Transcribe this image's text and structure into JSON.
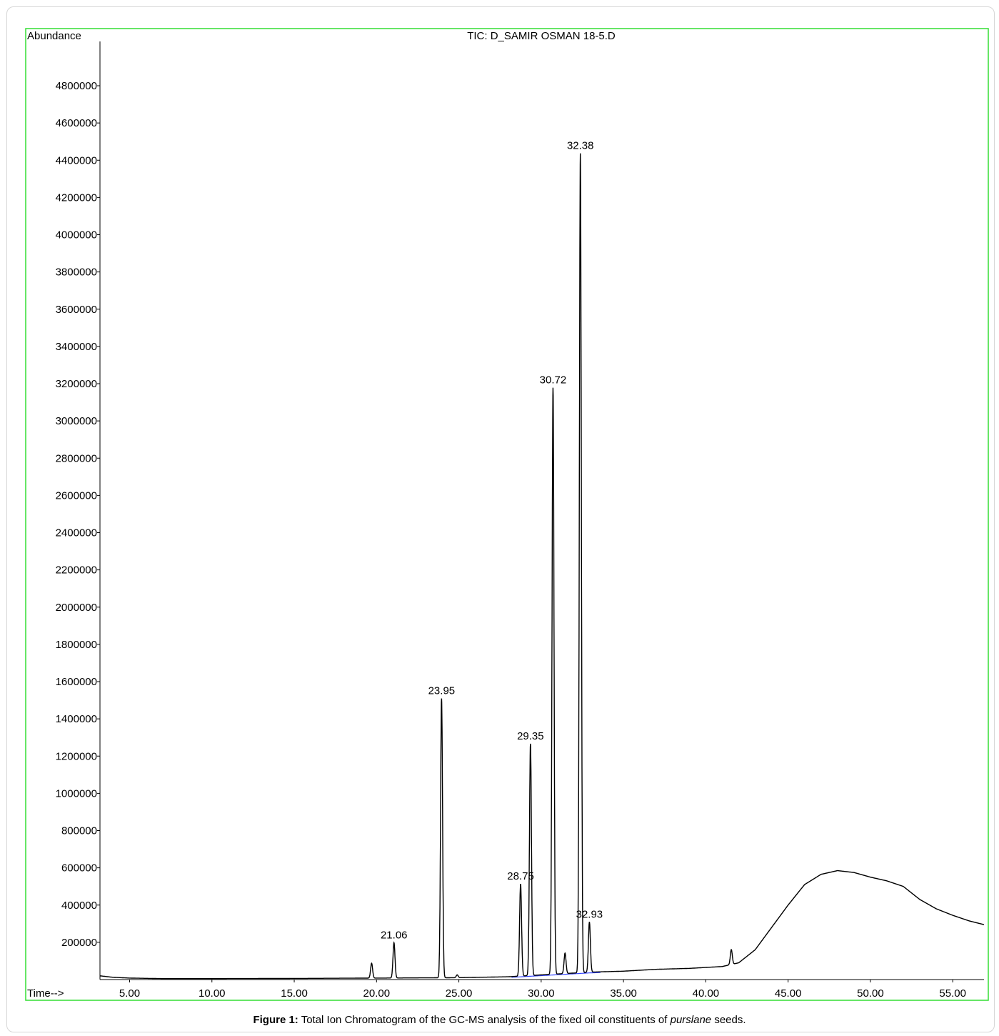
{
  "chart_data": {
    "type": "line",
    "title": "TIC: D_SAMIR OSMAN 18-5.D",
    "ylabel": "Abundance",
    "xlabel": "Time-->",
    "xlim": [
      3.2,
      56.9
    ],
    "ylim": [
      0,
      5000000
    ],
    "grid": false,
    "frame_color": "#33dd33",
    "line_color": "#000000",
    "baseline_color": "#3344ff",
    "yticks": [
      200000,
      400000,
      600000,
      800000,
      1000000,
      1200000,
      1400000,
      1600000,
      1800000,
      2000000,
      2200000,
      2400000,
      2600000,
      2800000,
      3000000,
      3200000,
      3400000,
      3600000,
      3800000,
      4000000,
      4200000,
      4400000,
      4600000,
      4800000
    ],
    "ytick_labels": [
      "200000",
      "400000",
      "600000",
      "800000",
      "1000000",
      "1200000",
      "1400000",
      "1600000",
      "1800000",
      "2000000",
      "2200000",
      "2400000",
      "2600000",
      "2800000",
      "3000000",
      "3200000",
      "3400000",
      "3600000",
      "3800000",
      "4000000",
      "4200000",
      "4400000",
      "4600000",
      "4800000"
    ],
    "xticks": [
      5,
      10,
      15,
      20,
      25,
      30,
      35,
      40,
      45,
      50,
      55
    ],
    "xtick_labels": [
      "5.00",
      "10.00",
      "15.00",
      "20.00",
      "25.00",
      "30.00",
      "35.00",
      "40.00",
      "45.00",
      "50.00",
      "55.00"
    ],
    "peaks": [
      {
        "rt": 19.7,
        "height": 80000,
        "label": ""
      },
      {
        "rt": 21.06,
        "height": 190000,
        "label": "21.06"
      },
      {
        "rt": 23.95,
        "height": 1500000,
        "label": "23.95"
      },
      {
        "rt": 24.9,
        "height": 15000,
        "label": ""
      },
      {
        "rt": 28.75,
        "height": 495000,
        "label": "28.75"
      },
      {
        "rt": 29.35,
        "height": 1245000,
        "label": "29.35"
      },
      {
        "rt": 30.72,
        "height": 3150000,
        "label": "30.72"
      },
      {
        "rt": 31.45,
        "height": 110000,
        "label": ""
      },
      {
        "rt": 32.38,
        "height": 4400000,
        "label": "32.38"
      },
      {
        "rt": 32.93,
        "height": 270000,
        "label": "32.93"
      },
      {
        "rt": 41.55,
        "height": 80000,
        "label": ""
      }
    ],
    "background": {
      "x": [
        3.2,
        4.0,
        5.0,
        7.0,
        10.0,
        15.0,
        20.0,
        25.0,
        28.0,
        30.0,
        33.0,
        35.0,
        37.0,
        39.0,
        41.0,
        42.0,
        43.0,
        44.0,
        45.0,
        46.0,
        47.0,
        48.0,
        49.0,
        50.0,
        51.0,
        52.0,
        53.0,
        54.0,
        55.0,
        56.0,
        56.9
      ],
      "y": [
        20000,
        12000,
        8000,
        5000,
        5000,
        6000,
        8000,
        10000,
        15000,
        25000,
        40000,
        45000,
        55000,
        60000,
        70000,
        90000,
        160000,
        280000,
        400000,
        510000,
        565000,
        585000,
        575000,
        550000,
        530000,
        500000,
        430000,
        380000,
        345000,
        315000,
        295000
      ]
    }
  },
  "caption": {
    "label": "Figure 1:",
    "text_before": " Total Ion Chromatogram of the GC-MS analysis of the fixed oil constituents of ",
    "italic": "purslane",
    "text_after": " seeds."
  }
}
